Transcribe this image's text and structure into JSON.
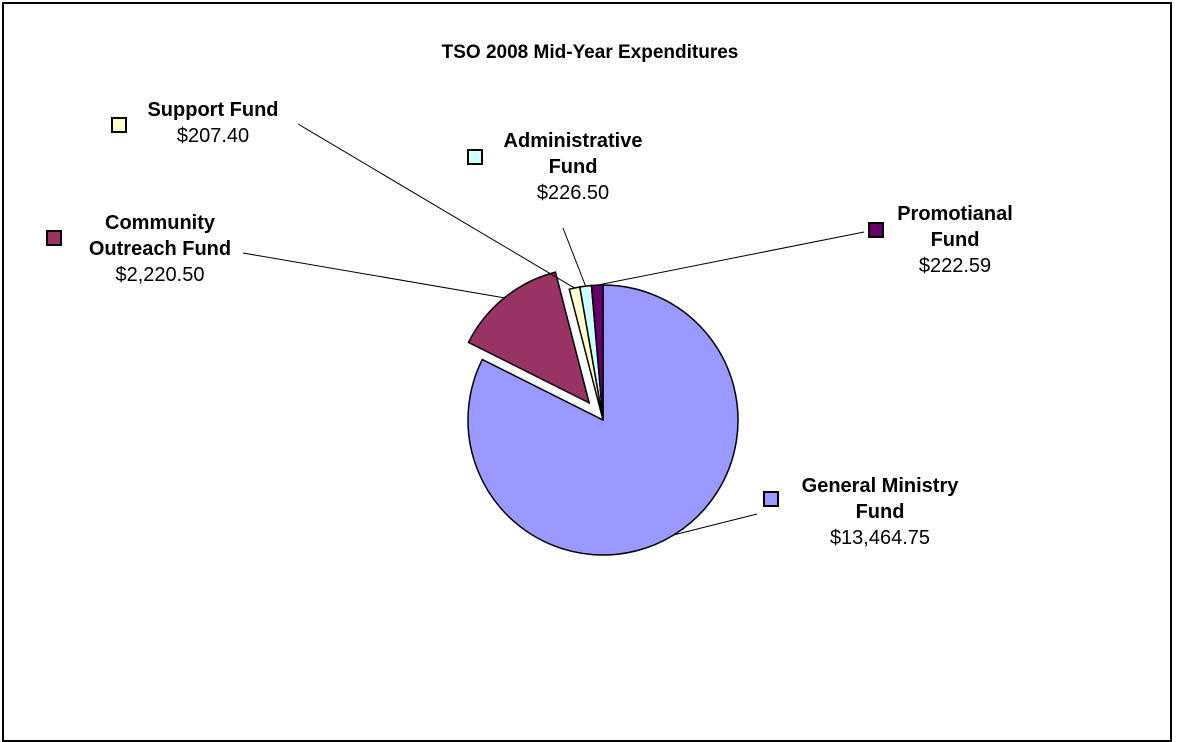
{
  "chart_data": {
    "type": "pie",
    "title": "TSO 2008 Mid-Year Expenditures",
    "slices": [
      {
        "name": "General Ministry Fund",
        "name_lines": [
          "General Ministry",
          "Fund"
        ],
        "value": 13464.75,
        "value_label": "$13,464.75",
        "color": "#9999ff",
        "exploded": false
      },
      {
        "name": "Community Outreach Fund",
        "name_lines": [
          "Community",
          "Outreach Fund"
        ],
        "value": 2220.5,
        "value_label": "$2,220.50",
        "color": "#993366",
        "exploded": true
      },
      {
        "name": "Support Fund",
        "name_lines": [
          "Support Fund"
        ],
        "value": 207.4,
        "value_label": "$207.40",
        "color": "#ffffcc",
        "exploded": false
      },
      {
        "name": "Administrative Fund",
        "name_lines": [
          "Administrative",
          "Fund"
        ],
        "value": 226.5,
        "value_label": "$226.50",
        "color": "#ccffff",
        "exploded": false
      },
      {
        "name": "Promotianal Fund",
        "name_lines": [
          "Promotianal",
          "Fund"
        ],
        "value": 222.59,
        "value_label": "$222.59",
        "color": "#660066",
        "exploded": false
      }
    ]
  }
}
